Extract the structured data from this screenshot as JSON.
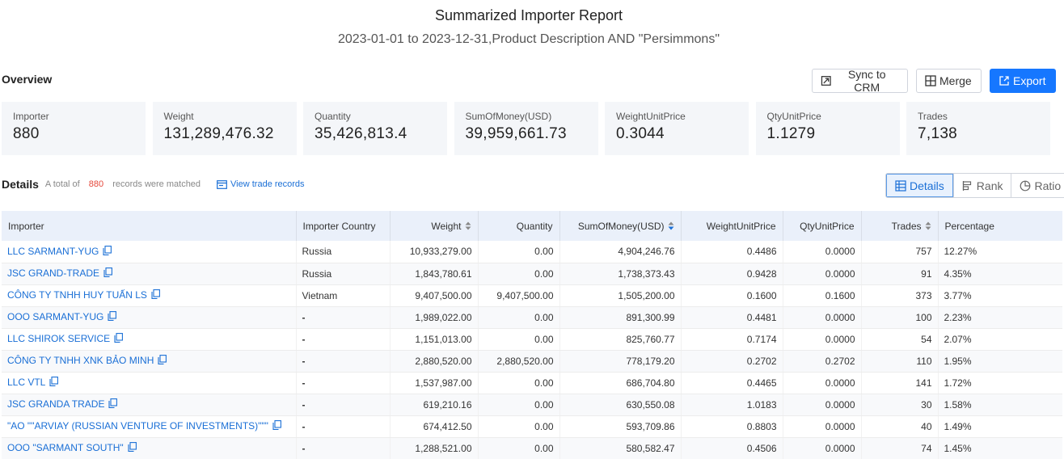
{
  "header": {
    "title": "Summarized Importer Report",
    "subtitle": "2023-01-01 to 2023-12-31,Product Description AND \"Persimmons\""
  },
  "overview": {
    "label": "Overview",
    "buttons": {
      "sync": "Sync to CRM",
      "merge": "Merge",
      "export": "Export"
    },
    "stats": [
      {
        "label": "Importer",
        "value": "880"
      },
      {
        "label": "Weight",
        "value": "131,289,476.32"
      },
      {
        "label": "Quantity",
        "value": "35,426,813.4"
      },
      {
        "label": "SumOfMoney(USD)",
        "value": "39,959,661.73"
      },
      {
        "label": "WeightUnitPrice",
        "value": "0.3044"
      },
      {
        "label": "QtyUnitPrice",
        "value": "1.1279"
      },
      {
        "label": "Trades",
        "value": "7,138"
      }
    ]
  },
  "details": {
    "title": "Details",
    "meta_prefix": "A total of",
    "count": "880",
    "meta_suffix": "records were matched",
    "view_link": "View trade records",
    "tabs": {
      "details": "Details",
      "rank": "Rank",
      "ratio": "Ratio"
    }
  },
  "table": {
    "columns": {
      "importer": "Importer",
      "country": "Importer Country",
      "weight": "Weight",
      "quantity": "Quantity",
      "money": "SumOfMoney(USD)",
      "wup": "WeightUnitPrice",
      "qup": "QtyUnitPrice",
      "trades": "Trades",
      "pct": "Percentage"
    },
    "rows": [
      {
        "importer": "LLC SARMANT-YUG",
        "country": "Russia",
        "weight": "10,933,279.00",
        "quantity": "0.00",
        "money": "4,904,246.76",
        "wup": "0.4486",
        "qup": "0.0000",
        "trades": "757",
        "pct": "12.27%"
      },
      {
        "importer": "JSC GRAND-TRADE",
        "country": "Russia",
        "weight": "1,843,780.61",
        "quantity": "0.00",
        "money": "1,738,373.43",
        "wup": "0.9428",
        "qup": "0.0000",
        "trades": "91",
        "pct": "4.35%"
      },
      {
        "importer": "CÔNG TY TNHH HUY TUẤN LS",
        "country": "Vietnam",
        "weight": "9,407,500.00",
        "quantity": "9,407,500.00",
        "money": "1,505,200.00",
        "wup": "0.1600",
        "qup": "0.1600",
        "trades": "373",
        "pct": "3.77%"
      },
      {
        "importer": "OOO SARMANT-YUG",
        "country": "-",
        "weight": "1,989,022.00",
        "quantity": "0.00",
        "money": "891,300.99",
        "wup": "0.4481",
        "qup": "0.0000",
        "trades": "100",
        "pct": "2.23%"
      },
      {
        "importer": "LLC SHIROK SERVICE",
        "country": "-",
        "weight": "1,151,013.00",
        "quantity": "0.00",
        "money": "825,760.77",
        "wup": "0.7174",
        "qup": "0.0000",
        "trades": "54",
        "pct": "2.07%"
      },
      {
        "importer": "CÔNG TY TNHH XNK BẢO MINH",
        "country": "-",
        "weight": "2,880,520.00",
        "quantity": "2,880,520.00",
        "money": "778,179.20",
        "wup": "0.2702",
        "qup": "0.2702",
        "trades": "110",
        "pct": "1.95%"
      },
      {
        "importer": "LLC VTL",
        "country": "-",
        "weight": "1,537,987.00",
        "quantity": "0.00",
        "money": "686,704.80",
        "wup": "0.4465",
        "qup": "0.0000",
        "trades": "141",
        "pct": "1.72%"
      },
      {
        "importer": "JSC GRANDA TRADE",
        "country": "-",
        "weight": "619,210.16",
        "quantity": "0.00",
        "money": "630,550.08",
        "wup": "1.0183",
        "qup": "0.0000",
        "trades": "30",
        "pct": "1.58%"
      },
      {
        "importer": "\"AO \"\"ARVIAY (RUSSIAN VENTURE OF INVESTMENTS)\"\"\"",
        "country": "-",
        "weight": "674,412.50",
        "quantity": "0.00",
        "money": "593,709.86",
        "wup": "0.8803",
        "qup": "0.0000",
        "trades": "40",
        "pct": "1.49%"
      },
      {
        "importer": "OOO \"SARMANT SOUTH\"",
        "country": "-",
        "weight": "1,288,521.00",
        "quantity": "0.00",
        "money": "580,582.47",
        "wup": "0.4506",
        "qup": "0.0000",
        "trades": "74",
        "pct": "1.45%"
      }
    ]
  },
  "colors": {
    "accent": "#1677ff",
    "link": "#1a6fd6",
    "count": "#e5483b",
    "header_bg": "#eaf0fa",
    "card_bg": "#f4f6f9"
  }
}
